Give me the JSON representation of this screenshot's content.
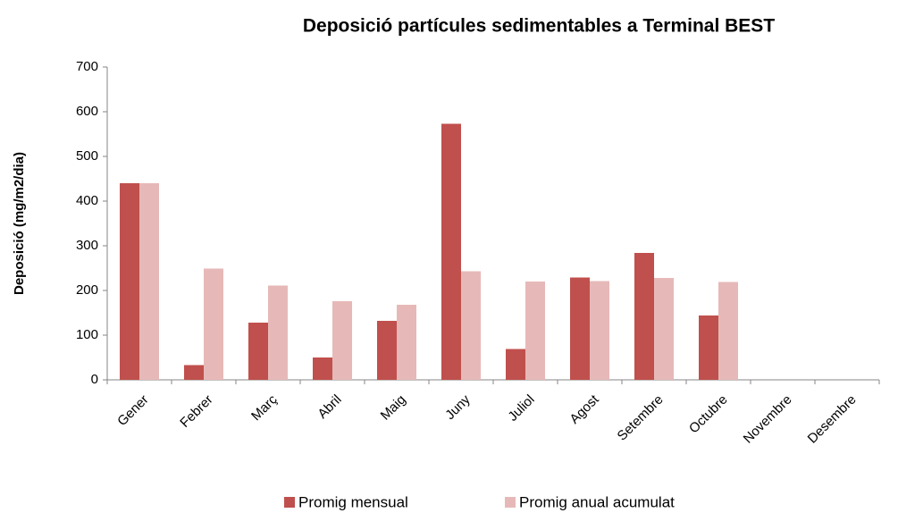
{
  "chart_data": {
    "type": "bar",
    "title": "Deposició partícules sedimentables a Terminal BEST",
    "y_label": "Deposició (mg/m2/dia)",
    "categories": [
      "Gener",
      "Febrer",
      "Març",
      "Abril",
      "Maig",
      "Juny",
      "Juliol",
      "Agost",
      "Setembre",
      "Octubre",
      "Novembre",
      "Desembre"
    ],
    "series": [
      {
        "name": "Promig mensual",
        "color": "#c0504d",
        "values": [
          440,
          33,
          128,
          50,
          132,
          573,
          69,
          229,
          284,
          144,
          null,
          null
        ]
      },
      {
        "name": "Promig anual acumulat",
        "color": "#e6b9b8",
        "values": [
          440,
          249,
          211,
          176,
          168,
          243,
          220,
          221,
          228,
          219,
          null,
          null
        ]
      }
    ],
    "ylim": [
      0,
      700
    ],
    "yticks": [
      0,
      100,
      200,
      300,
      400,
      500,
      600,
      700
    ],
    "grid": false,
    "legend": "bottom"
  }
}
